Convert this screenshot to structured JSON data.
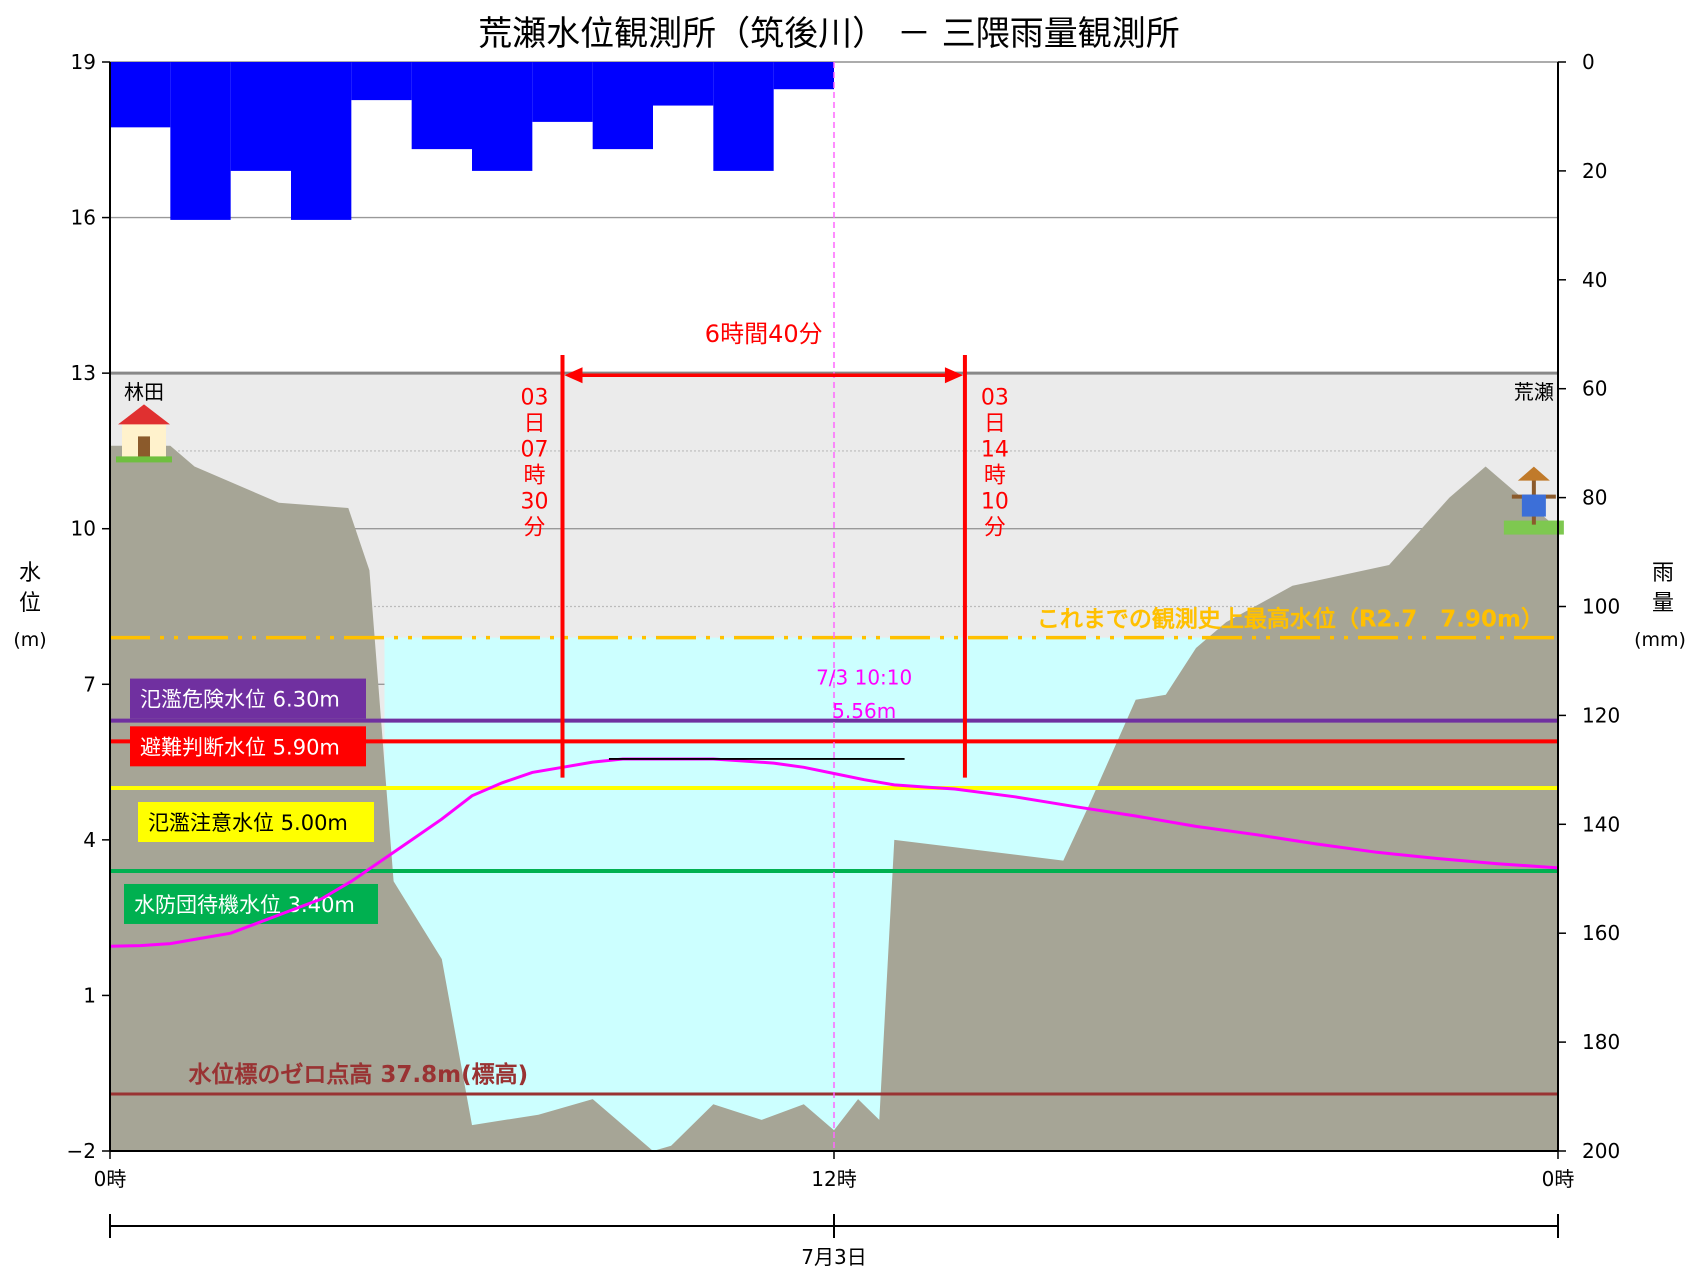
{
  "chart_data": {
    "type": "line",
    "title": "荒瀬水位観測所（筑後川） － 三隈雨量観測所",
    "left_axis": {
      "label_chars": [
        "水",
        "位"
      ],
      "unit": "(m)",
      "ticks": [
        "19",
        "16",
        "13",
        "10",
        "7",
        "4",
        "1",
        "−2"
      ],
      "range": [
        -2,
        19
      ]
    },
    "right_axis": {
      "label_chars": [
        "雨",
        "量"
      ],
      "unit": "(mm)",
      "ticks": [
        "0",
        "20",
        "40",
        "60",
        "80",
        "100",
        "120",
        "140",
        "160",
        "180",
        "200"
      ],
      "range": [
        0,
        200
      ]
    },
    "x_axis": {
      "ticks": [
        "0時",
        "12時",
        "0時"
      ],
      "tick_hours": [
        0,
        12,
        24
      ],
      "date_label": "7月3日",
      "range_hours": [
        0,
        24
      ]
    },
    "rainfall_mm": {
      "hours": [
        0,
        1,
        2,
        3,
        4,
        5,
        6,
        7,
        8,
        9,
        10,
        11
      ],
      "values": [
        12,
        29,
        20,
        29,
        7,
        16,
        20,
        11,
        16,
        8,
        20,
        5
      ]
    },
    "water_level": {
      "color": "#ff00ff",
      "hours": [
        0,
        0.5,
        1,
        1.5,
        2,
        2.5,
        3,
        3.5,
        4,
        4.5,
        5,
        5.5,
        6,
        6.5,
        7,
        7.5,
        8,
        8.5,
        9,
        9.5,
        10,
        10.5,
        11,
        11.5,
        12,
        12.5,
        13,
        13.5,
        14,
        15,
        16,
        17,
        18,
        19,
        20,
        21,
        22,
        23,
        24
      ],
      "values": [
        1.95,
        1.96,
        2.0,
        2.1,
        2.2,
        2.42,
        2.64,
        2.86,
        3.2,
        3.6,
        4.0,
        4.4,
        4.85,
        5.1,
        5.3,
        5.4,
        5.5,
        5.56,
        5.56,
        5.56,
        5.56,
        5.52,
        5.48,
        5.4,
        5.28,
        5.16,
        5.06,
        5.02,
        4.98,
        4.83,
        4.64,
        4.46,
        4.26,
        4.1,
        3.92,
        3.76,
        3.64,
        3.54,
        3.46
      ]
    },
    "thresholds": [
      {
        "label": "氾濫危険水位 6.30m",
        "value": 6.3,
        "color": "#7030a0",
        "text_color": "#ffffff"
      },
      {
        "label": "避難判断水位 5.90m",
        "value": 5.9,
        "color": "#ff0000",
        "text_color": "#ffffff"
      },
      {
        "label": "氾濫注意水位 5.00m",
        "value": 5.0,
        "color": "#ffff00",
        "text_color": "#000000"
      },
      {
        "label": "水防団待機水位 3.40m",
        "value": 3.4,
        "color": "#00b050",
        "text_color": "#ffffff"
      }
    ],
    "record_high": {
      "label": "これまでの観測史上最高水位（R2.7　7.90m）",
      "value": 7.9,
      "color": "#ffc000"
    },
    "zero_point": {
      "label": "水位標のゼロ点高 37.8m(標高)",
      "value": -0.9,
      "color": "#993333"
    },
    "peak_annotation": {
      "line1": "7/3 10:10",
      "line2": "5.56m",
      "hour": 10.17,
      "value": 5.56,
      "color": "#ff00ff"
    },
    "duration_annotation": {
      "label": "6時間40分",
      "start_hour": 7.5,
      "end_hour": 14.17,
      "start_text": [
        "03",
        "日",
        "07",
        "時",
        "30",
        "分"
      ],
      "end_text": [
        "03",
        "日",
        "14",
        "時",
        "10",
        "分"
      ],
      "color": "#ff0000"
    },
    "now_hour": 12,
    "cross_section": {
      "color": "#a6a596",
      "water_color": "#ccffff",
      "top": 13,
      "bank_label_left": "林田",
      "bank_label_right": "荒瀬",
      "hours": [
        0,
        1,
        1.4,
        2.8,
        3.95,
        4.3,
        4.7,
        5.5,
        6.0,
        7.1,
        8.0,
        9.0,
        9.3,
        10.0,
        10.8,
        11.5,
        12.0,
        12.4,
        12.75,
        13.0,
        15.8,
        16.2,
        17.0,
        17.5,
        18.0,
        18.5,
        19.6,
        20.0,
        21.2,
        22.2,
        22.8,
        24.0
      ],
      "values": [
        11.6,
        11.6,
        11.2,
        10.5,
        10.4,
        9.2,
        3.2,
        1.7,
        -1.5,
        -1.3,
        -1.0,
        -2.0,
        -1.9,
        -1.1,
        -1.4,
        -1.1,
        -1.6,
        -1.0,
        -1.4,
        4.0,
        3.6,
        4.6,
        6.7,
        6.8,
        7.7,
        8.2,
        8.9,
        9.0,
        9.3,
        10.6,
        11.2,
        10.0
      ]
    }
  }
}
